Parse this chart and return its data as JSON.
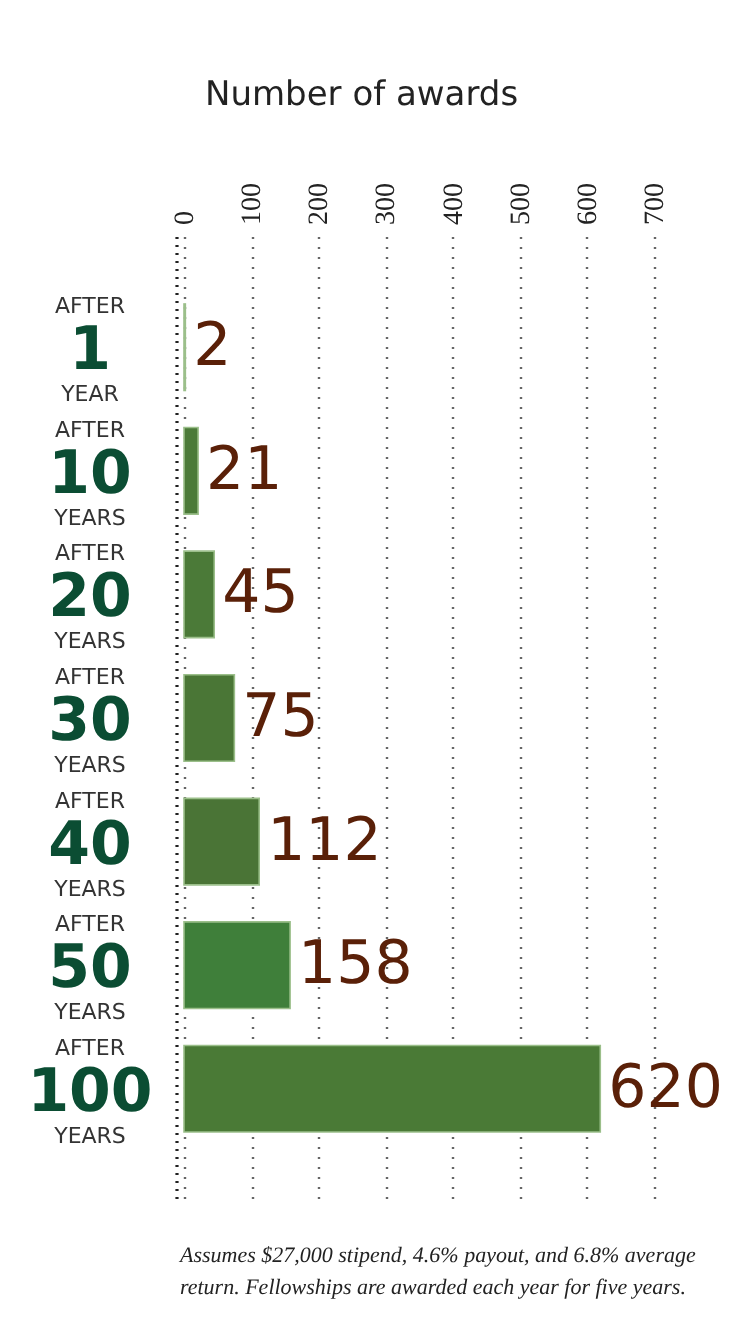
{
  "chart_data": {
    "type": "bar",
    "orientation": "horizontal",
    "xlabel": "Number of awards",
    "categories": [
      "AFTER 1 YEAR",
      "AFTER 10 YEARS",
      "AFTER 20 YEARS",
      "AFTER 30 YEARS",
      "AFTER 40 YEARS",
      "AFTER 50 YEARS",
      "AFTER 100 YEARS"
    ],
    "values": [
      2,
      21,
      45,
      75,
      112,
      158,
      620
    ],
    "colors": [
      "#4b7a38",
      "#4b7a38",
      "#4b7a38",
      "#4a7636",
      "#4a7436",
      "#3f7f3a",
      "#4a7a36"
    ],
    "xlim": [
      0,
      700
    ],
    "xticks": [
      0,
      100,
      200,
      300,
      400,
      500,
      600,
      700
    ],
    "grid": "x",
    "data_labels": true,
    "annotations": [
      "Assumes $27,000 stipend, 4.6% payout, and 6.8% average return. Fellowships are awarded each year for five years."
    ]
  }
}
